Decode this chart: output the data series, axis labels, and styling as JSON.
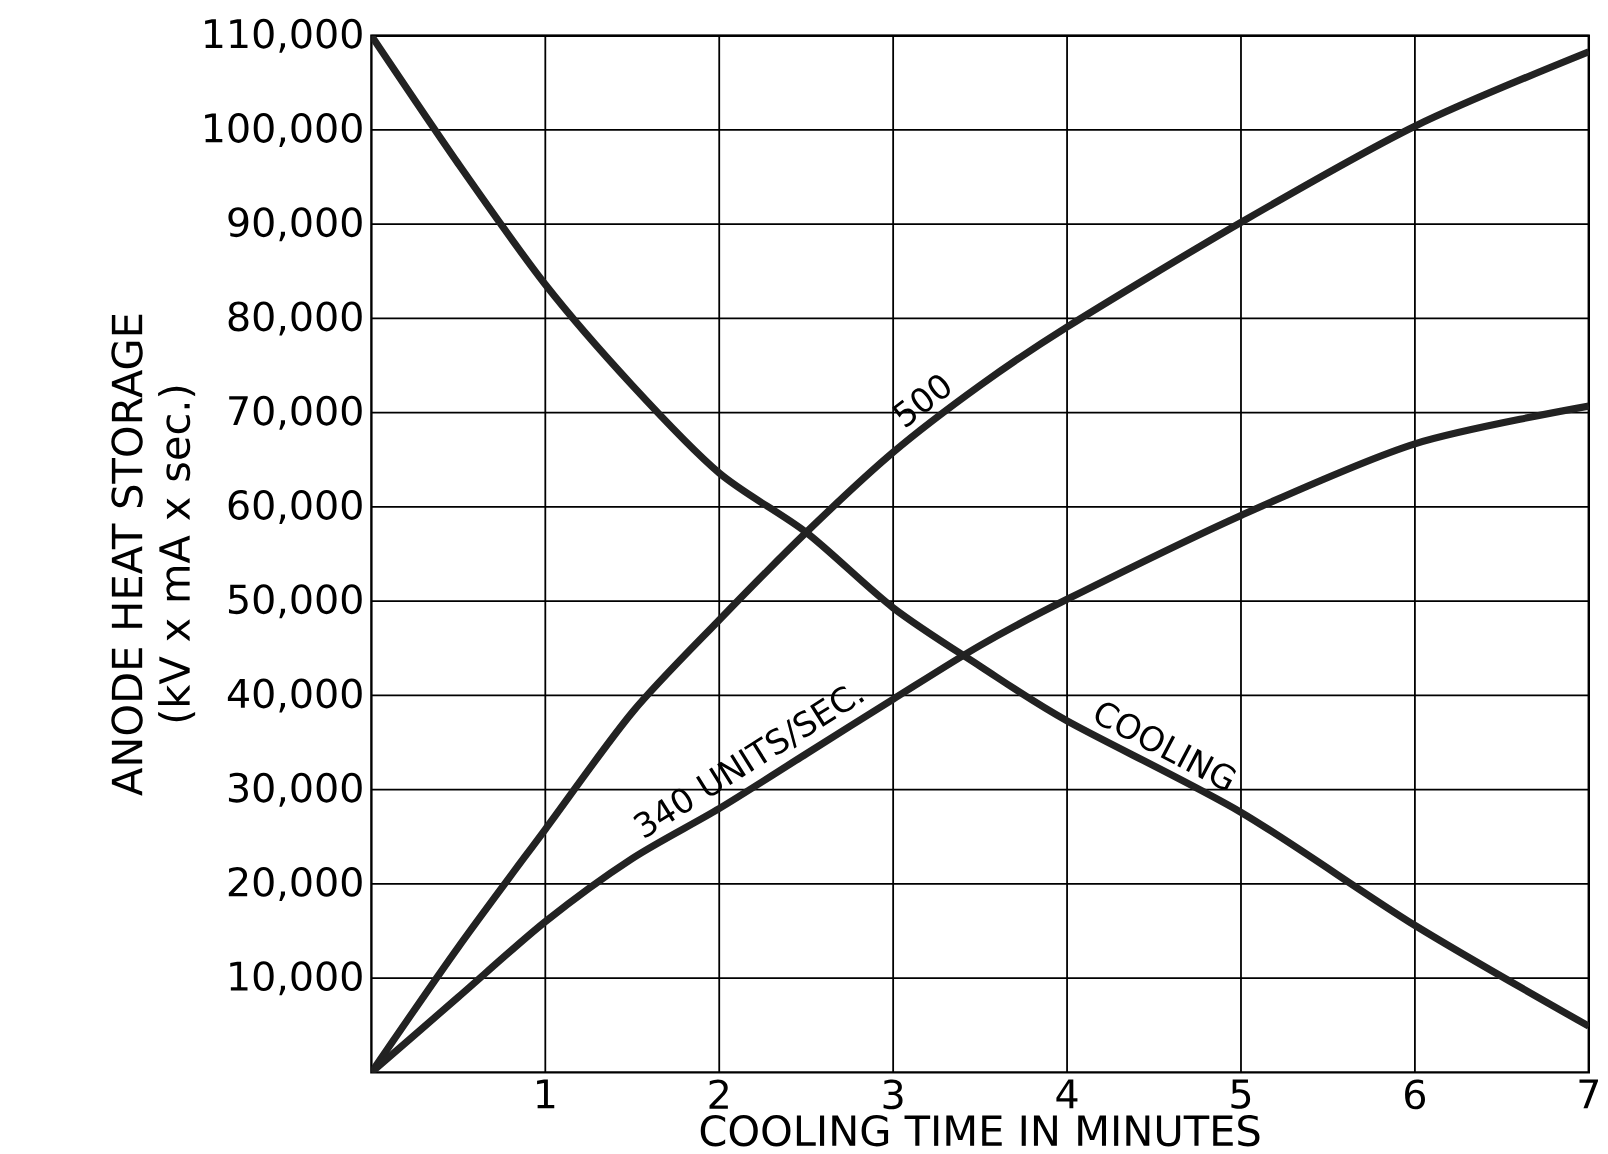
{
  "chart_data": {
    "type": "line",
    "xlabel": "COOLING TIME IN MINUTES",
    "ylabel": "ANODE HEAT STORAGE (kV x mA x sec.)",
    "x": [
      0,
      0.5,
      1,
      1.5,
      2,
      2.5,
      3,
      3.5,
      4,
      5,
      6,
      7
    ],
    "xlim": [
      0,
      7
    ],
    "xticks": [
      1,
      2,
      3,
      4,
      5,
      6,
      7
    ],
    "ylim": [
      0,
      110000
    ],
    "yticks": [
      {
        "value": 10000,
        "label": "10,000"
      },
      {
        "value": 20000,
        "label": "20,000"
      },
      {
        "value": 30000,
        "label": "30,000"
      },
      {
        "value": 40000,
        "label": "40,000"
      },
      {
        "value": 50000,
        "label": "50,000"
      },
      {
        "value": 60000,
        "label": "60,000"
      },
      {
        "value": 70000,
        "label": "70,000"
      },
      {
        "value": 80000,
        "label": "80,000"
      },
      {
        "value": 90000,
        "label": "90,000"
      },
      {
        "value": 100000,
        "label": "100,000"
      },
      {
        "value": 110000,
        "label": "110,000"
      }
    ],
    "grid": true,
    "series": [
      {
        "name": "500",
        "color": "#222222",
        "values": [
          0,
          13300,
          25800,
          38200,
          48000,
          57300,
          65800,
          72900,
          79100,
          90200,
          100400,
          108300
        ]
      },
      {
        "name": "340 UNITS/SEC.",
        "color": "#222222",
        "values": [
          0,
          8000,
          16000,
          22700,
          28000,
          33800,
          39600,
          45300,
          50200,
          59100,
          66700,
          70700
        ]
      },
      {
        "name": "COOLING",
        "color": "#222222",
        "values": [
          110000,
          96400,
          83600,
          72900,
          63600,
          57300,
          49300,
          43100,
          37300,
          27600,
          15600,
          4900
        ]
      }
    ]
  }
}
